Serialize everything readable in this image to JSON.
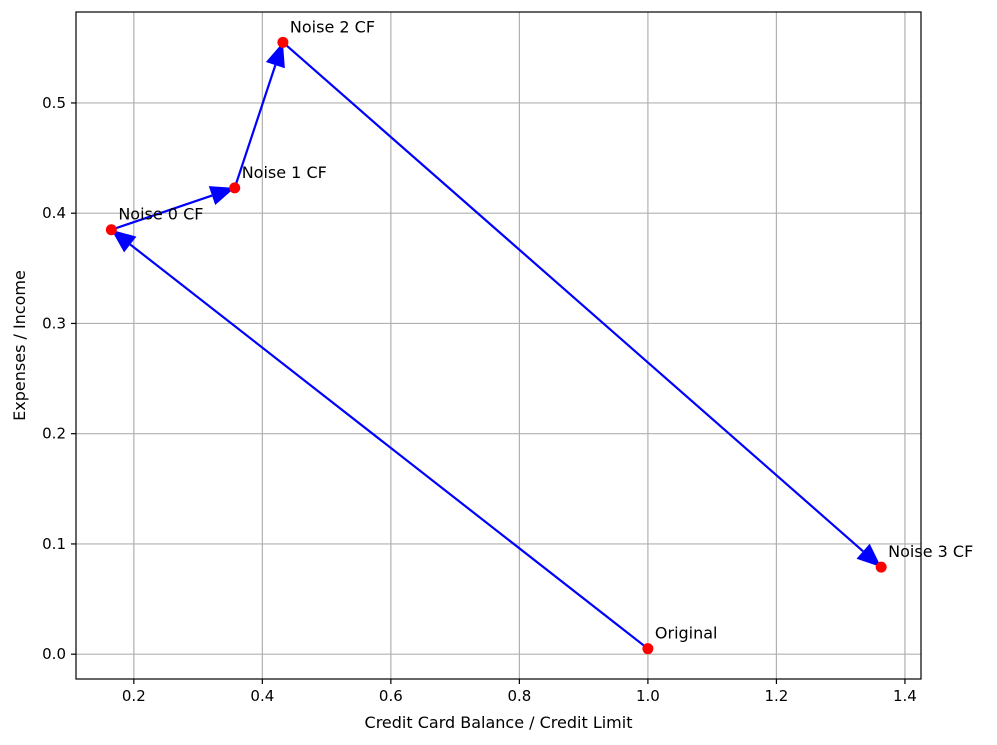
{
  "chart_data": {
    "type": "scatter",
    "title": "",
    "xlabel": "Credit Card Balance / Credit Limit",
    "ylabel": "Expenses / Income",
    "xlim": [
      0.11,
      1.425
    ],
    "ylim": [
      -0.0225,
      0.5825
    ],
    "grid": true,
    "x_ticks": [
      0.2,
      0.4,
      0.6,
      0.8,
      1.0,
      1.2,
      1.4
    ],
    "x_tick_labels": [
      "0.2",
      "0.4",
      "0.6",
      "0.8",
      "1.0",
      "1.2",
      "1.4"
    ],
    "y_ticks": [
      0.0,
      0.1,
      0.2,
      0.3,
      0.4,
      0.5
    ],
    "y_tick_labels": [
      "0.0",
      "0.1",
      "0.2",
      "0.3",
      "0.4",
      "0.5"
    ],
    "points": [
      {
        "label": "Original",
        "x": 1.0,
        "y": 0.005
      },
      {
        "label": "Noise 0 CF",
        "x": 0.165,
        "y": 0.385
      },
      {
        "label": "Noise 1 CF",
        "x": 0.357,
        "y": 0.423
      },
      {
        "label": "Noise 2 CF",
        "x": 0.432,
        "y": 0.555
      },
      {
        "label": "Noise 3 CF",
        "x": 1.363,
        "y": 0.079
      }
    ],
    "arrows": [
      {
        "from": "Original",
        "to": "Noise 0 CF"
      },
      {
        "from": "Noise 0 CF",
        "to": "Noise 1 CF"
      },
      {
        "from": "Noise 1 CF",
        "to": "Noise 2 CF"
      },
      {
        "from": "Noise 2 CF",
        "to": "Noise 3 CF"
      }
    ],
    "colors": {
      "points": "#ff0000",
      "arrows": "#0000ff",
      "grid": "#b0b0b0"
    }
  }
}
